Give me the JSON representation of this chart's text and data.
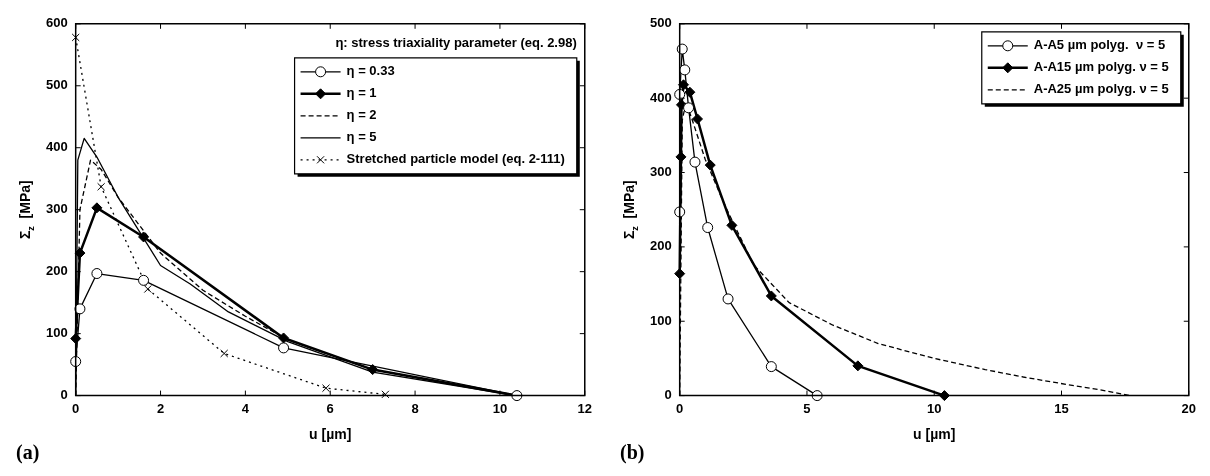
{
  "chart_data": [
    {
      "type": "line",
      "xlabel": "u [µm]",
      "ylabel": "Σ$_{z}$  [MPa]",
      "legend_title": "η: stress triaxiality parameter (eq. 2.98)",
      "legend": "top right",
      "grid": false,
      "annotations": [
        "(a)"
      ],
      "xlim": [
        0,
        12
      ],
      "xticks": [
        0,
        2,
        4,
        6,
        8,
        10,
        12
      ],
      "ylim": [
        0,
        600
      ],
      "yticks": [
        0,
        100,
        200,
        300,
        400,
        500,
        600
      ],
      "series": [
        {
          "name": "η = 0.33",
          "color": "#000000",
          "marker": "circle",
          "line_style": "solid",
          "x": [
            0,
            0.1,
            0.5,
            1.6,
            4.9,
            10.4
          ],
          "values": [
            55,
            140,
            197,
            186,
            77,
            0
          ]
        },
        {
          "name": "η = 1",
          "color": "#000000",
          "marker": "diamond",
          "line_style": "solid",
          "x": [
            0,
            0.1,
            0.5,
            1.6,
            4.9,
            7,
            10.4
          ],
          "values": [
            92,
            230,
            303,
            256,
            93,
            42,
            0
          ]
        },
        {
          "name": "η = 2",
          "color": "#000000",
          "marker": "none",
          "line_style": "dashed",
          "x": [
            0,
            0.1,
            0.35,
            0.6,
            1,
            2,
            3,
            4,
            5,
            7,
            10.4
          ],
          "values": [
            0,
            300,
            380,
            365,
            320,
            230,
            170,
            128,
            90,
            42,
            0
          ]
        },
        {
          "name": "η = 5",
          "color": "#000000",
          "marker": "none",
          "line_style": "solid",
          "x": [
            0,
            0.05,
            0.2,
            0.5,
            1,
            2,
            2.7,
            3.6,
            5,
            7,
            10.4
          ],
          "values": [
            0,
            380,
            415,
            385,
            320,
            210,
            180,
            135,
            87,
            38,
            0
          ]
        },
        {
          "name": "Stretched particle model (eq. 2-111)",
          "color": "#000000",
          "marker": "cross",
          "line_style": "dotted",
          "x": [
            0,
            0.6,
            1.7,
            3.5,
            5.9,
            7.3
          ],
          "values": [
            578,
            337,
            172,
            68,
            12,
            2
          ]
        }
      ]
    },
    {
      "type": "line",
      "xlabel": "u [µm]",
      "ylabel": "Σ$_{z}$  [MPa]",
      "legend": "top right",
      "grid": false,
      "annotations": [
        "(b)"
      ],
      "xlim": [
        0,
        20
      ],
      "xticks": [
        0,
        5,
        10,
        15,
        20
      ],
      "ylim": [
        0,
        500
      ],
      "yticks": [
        0,
        100,
        200,
        300,
        400,
        500
      ],
      "series": [
        {
          "name": "A-A5 µm polyg.  ν = 5",
          "color": "#000000",
          "marker": "circle",
          "line_style": "solid",
          "x": [
            0,
            0,
            0.1,
            0.2,
            0.35,
            0.6,
            1.1,
            1.9,
            3.6,
            5.4
          ],
          "values": [
            247,
            405,
            466,
            438,
            387,
            314,
            226,
            130,
            39,
            0
          ]
        },
        {
          "name": "A-A15 µm polyg. ν = 5",
          "color": "#000000",
          "marker": "diamond",
          "line_style": "solid",
          "x": [
            0,
            0.05,
            0.07,
            0.15,
            0.4,
            0.7,
            1.2,
            2.05,
            3.6,
            7,
            10.4
          ],
          "values": [
            164,
            321,
            391,
            418,
            408,
            372,
            310,
            229,
            134,
            40,
            0
          ]
        },
        {
          "name": "A-A25 µm polyg. ν = 5",
          "color": "#000000",
          "marker": "none",
          "line_style": "dashed",
          "x": [
            0,
            0.1,
            0.25,
            0.5,
            1,
            1.8,
            2.9,
            4.3,
            6,
            7.8,
            10,
            12,
            13.5,
            15.2,
            16.5,
            17.7
          ],
          "values": [
            0,
            370,
            395,
            370,
            318,
            254,
            176,
            125,
            95,
            70,
            50,
            35,
            25,
            15,
            8,
            0
          ]
        }
      ]
    }
  ]
}
